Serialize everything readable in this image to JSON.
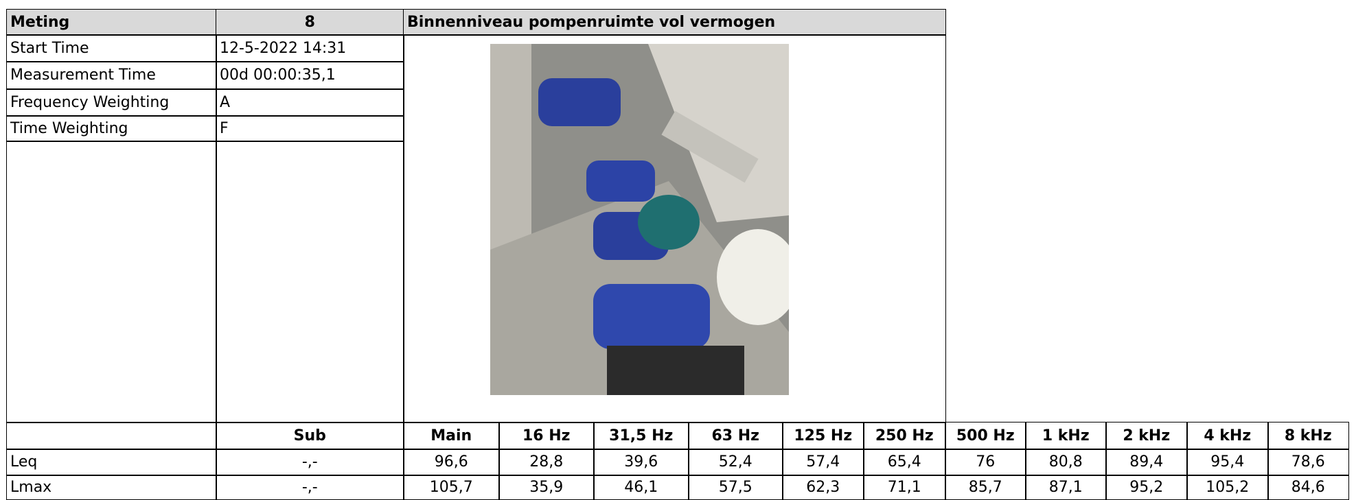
{
  "header": {
    "label": "Meting",
    "number": "8",
    "title": "Binnenniveau pompenruimte vol vermogen"
  },
  "info": [
    {
      "label": "Start Time",
      "value": "12-5-2022 14:31"
    },
    {
      "label": "Measurement Time",
      "value": "00d 00:00:35,1"
    },
    {
      "label": "Frequency Weighting",
      "value": "A"
    },
    {
      "label": "Time Weighting",
      "value": "F"
    }
  ],
  "table": {
    "columns": [
      "Sub",
      "Main",
      "16 Hz",
      "31,5 Hz",
      "63 Hz",
      "125 Hz",
      "250 Hz",
      "500 Hz",
      "1 kHz",
      "2 kHz",
      "4 kHz",
      "8 kHz"
    ],
    "rows": [
      {
        "label": "Leq",
        "values": [
          "-,-",
          "96,6",
          "28,8",
          "39,6",
          "52,4",
          "57,4",
          "65,4",
          "76",
          "80,8",
          "89,4",
          "95,4",
          "78,6"
        ]
      },
      {
        "label": "Lmax",
        "values": [
          "-,-",
          "105,7",
          "35,9",
          "46,1",
          "57,5",
          "62,3",
          "71,1",
          "85,7",
          "87,1",
          "95,2",
          "105,2",
          "84,6"
        ]
      }
    ]
  }
}
